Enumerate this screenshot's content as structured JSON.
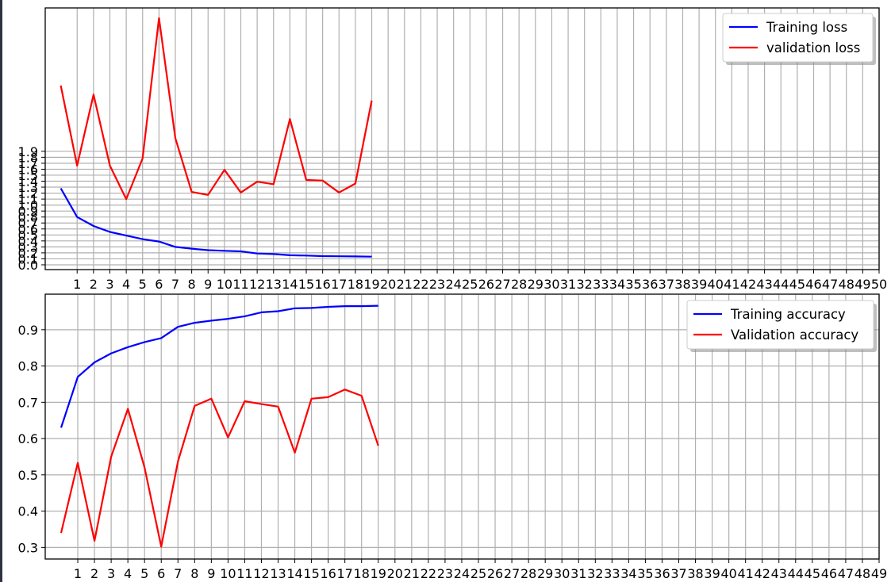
{
  "chart_data": [
    {
      "type": "line",
      "title": "",
      "xlabel": "",
      "ylabel": "",
      "x": [
        0,
        1,
        2,
        3,
        4,
        5,
        6,
        7,
        8,
        9,
        10,
        11,
        12,
        13,
        14,
        15,
        16,
        17,
        18,
        19
      ],
      "xticks": [
        1,
        2,
        3,
        4,
        5,
        6,
        7,
        8,
        9,
        10,
        11,
        12,
        13,
        14,
        15,
        16,
        17,
        18,
        19,
        20,
        21,
        22,
        23,
        24,
        25,
        26,
        27,
        28,
        29,
        30,
        31,
        32,
        33,
        34,
        35,
        36,
        37,
        38,
        39,
        40,
        41,
        42,
        43,
        44,
        45,
        46,
        47,
        48,
        49,
        50
      ],
      "yticks": [
        "0.0",
        "0.1",
        "0.2",
        "0.3",
        "0.4",
        "0.5",
        "0.6",
        "0.7",
        "0.8",
        "0.9",
        "1.0",
        "1.1",
        "1.2",
        "1.3",
        "1.4",
        "1.5",
        "1.6",
        "1.7",
        "1.8",
        "1.9"
      ],
      "xlim": [
        -0.95,
        50
      ],
      "ylim": [
        -0.08,
        4.3
      ],
      "grid": true,
      "legend_position": "top-right",
      "series": [
        {
          "name": "Training loss",
          "color": "#0000ff",
          "values": [
            1.28,
            0.8,
            0.65,
            0.55,
            0.49,
            0.43,
            0.39,
            0.3,
            0.27,
            0.245,
            0.235,
            0.225,
            0.19,
            0.18,
            0.16,
            0.155,
            0.145,
            0.143,
            0.14,
            0.137
          ]
        },
        {
          "name": "validation loss",
          "color": "#ff0000",
          "values": [
            3.0,
            1.66,
            2.85,
            1.66,
            1.1,
            1.78,
            4.13,
            2.12,
            1.22,
            1.17,
            1.59,
            1.21,
            1.39,
            1.35,
            2.44,
            1.42,
            1.41,
            1.21,
            1.36,
            2.75
          ]
        }
      ]
    },
    {
      "type": "line",
      "title": "",
      "xlabel": "",
      "ylabel": "",
      "x": [
        0,
        1,
        2,
        3,
        4,
        5,
        6,
        7,
        8,
        9,
        10,
        11,
        12,
        13,
        14,
        15,
        16,
        17,
        18,
        19
      ],
      "xticks": [
        1,
        2,
        3,
        4,
        5,
        6,
        7,
        8,
        9,
        10,
        11,
        12,
        13,
        14,
        15,
        16,
        17,
        18,
        19,
        20,
        21,
        22,
        23,
        24,
        25,
        26,
        27,
        28,
        29,
        30,
        31,
        32,
        33,
        34,
        35,
        36,
        37,
        38,
        39,
        40,
        41,
        42,
        43,
        44,
        45,
        46,
        47,
        48,
        49
      ],
      "yticks": [
        "0.3",
        "0.4",
        "0.5",
        "0.6",
        "0.7",
        "0.8",
        "0.9"
      ],
      "xlim": [
        -0.95,
        49
      ],
      "ylim": [
        0.268,
        0.998
      ],
      "grid": true,
      "legend_position": "top-right",
      "series": [
        {
          "name": "Training accuracy",
          "color": "#0000ff",
          "values": [
            0.63,
            0.77,
            0.81,
            0.835,
            0.852,
            0.866,
            0.877,
            0.908,
            0.919,
            0.925,
            0.93,
            0.937,
            0.948,
            0.951,
            0.959,
            0.96,
            0.963,
            0.965,
            0.965,
            0.966
          ]
        },
        {
          "name": "Validation accuracy",
          "color": "#ff0000",
          "values": [
            0.34,
            0.533,
            0.318,
            0.55,
            0.682,
            0.52,
            0.302,
            0.537,
            0.69,
            0.71,
            0.603,
            0.703,
            0.695,
            0.688,
            0.561,
            0.71,
            0.714,
            0.735,
            0.718,
            0.58
          ]
        }
      ]
    }
  ]
}
